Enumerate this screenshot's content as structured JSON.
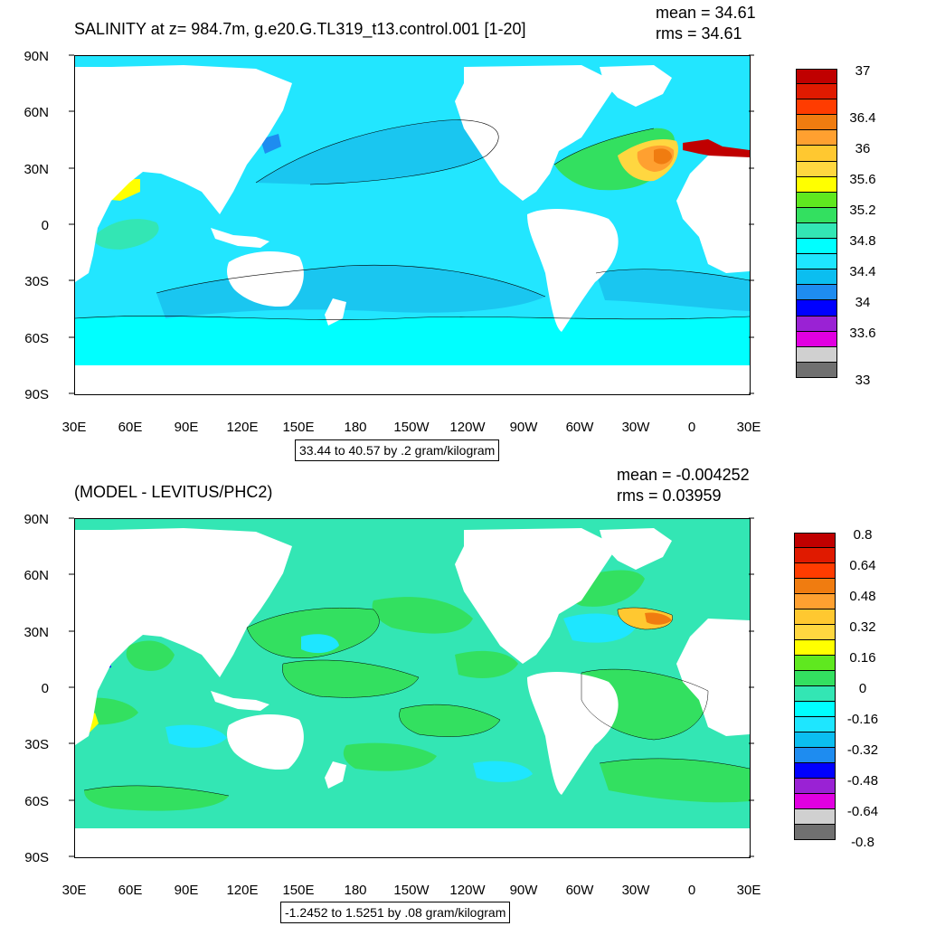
{
  "panels": [
    {
      "id": "salinity",
      "title": "SALINITY at z= 984.7m, g.e20.G.TL319_t13.control.001 [1-20]",
      "mean": "mean = 34.61",
      "rms": "rms = 34.61",
      "range_info": "33.44 to 40.57 by .2 gram/kilogram",
      "lat_labels": [
        "90N",
        "60N",
        "30N",
        "0",
        "30S",
        "60S",
        "90S"
      ],
      "lon_labels": [
        "30E",
        "60E",
        "90E",
        "120E",
        "150E",
        "180",
        "150W",
        "120W",
        "90W",
        "60W",
        "30W",
        "0",
        "30E"
      ],
      "colorbar": {
        "colors": [
          "#c00000",
          "#e01a00",
          "#ff3c00",
          "#f07c10",
          "#ffa030",
          "#ffc830",
          "#ffd740",
          "#ffff00",
          "#5fe81f",
          "#33e060",
          "#33e6b4",
          "#00ffff",
          "#1ee6ff",
          "#0bbef0",
          "#1e8cf0",
          "#0000ff",
          "#9a22d4",
          "#e100e1",
          "#d0d0d0",
          "#707070"
        ],
        "labels": [
          "37",
          "36.4",
          "36",
          "35.6",
          "35.2",
          "34.8",
          "34.4",
          "34",
          "33.6",
          "33"
        ]
      },
      "ocean_color": "#22e6ff"
    },
    {
      "id": "difference",
      "title": "(MODEL - LEVITUS/PHC2)",
      "mean": "mean = -0.004252",
      "rms": "rms = 0.03959",
      "range_info": "-1.2452 to 1.5251 by .08 gram/kilogram",
      "lat_labels": [
        "90N",
        "60N",
        "30N",
        "0",
        "30S",
        "60S",
        "90S"
      ],
      "lon_labels": [
        "30E",
        "60E",
        "90E",
        "120E",
        "150E",
        "180",
        "150W",
        "120W",
        "90W",
        "60W",
        "30W",
        "0",
        "30E"
      ],
      "colorbar": {
        "colors": [
          "#c00000",
          "#e01a00",
          "#ff3c00",
          "#f07c10",
          "#ffa030",
          "#ffc830",
          "#ffd740",
          "#ffff00",
          "#5fe81f",
          "#33e060",
          "#33e6b4",
          "#00ffff",
          "#1ee6ff",
          "#0bbef0",
          "#1e8cf0",
          "#0000ff",
          "#9a22d4",
          "#e100e1",
          "#d0d0d0",
          "#707070"
        ],
        "labels": [
          "0.8",
          "0.64",
          "0.48",
          "0.32",
          "0.16",
          "0",
          "-0.16",
          "-0.32",
          "-0.48",
          "-0.64",
          "-0.8"
        ]
      },
      "ocean_color": "#33e6b4"
    }
  ]
}
